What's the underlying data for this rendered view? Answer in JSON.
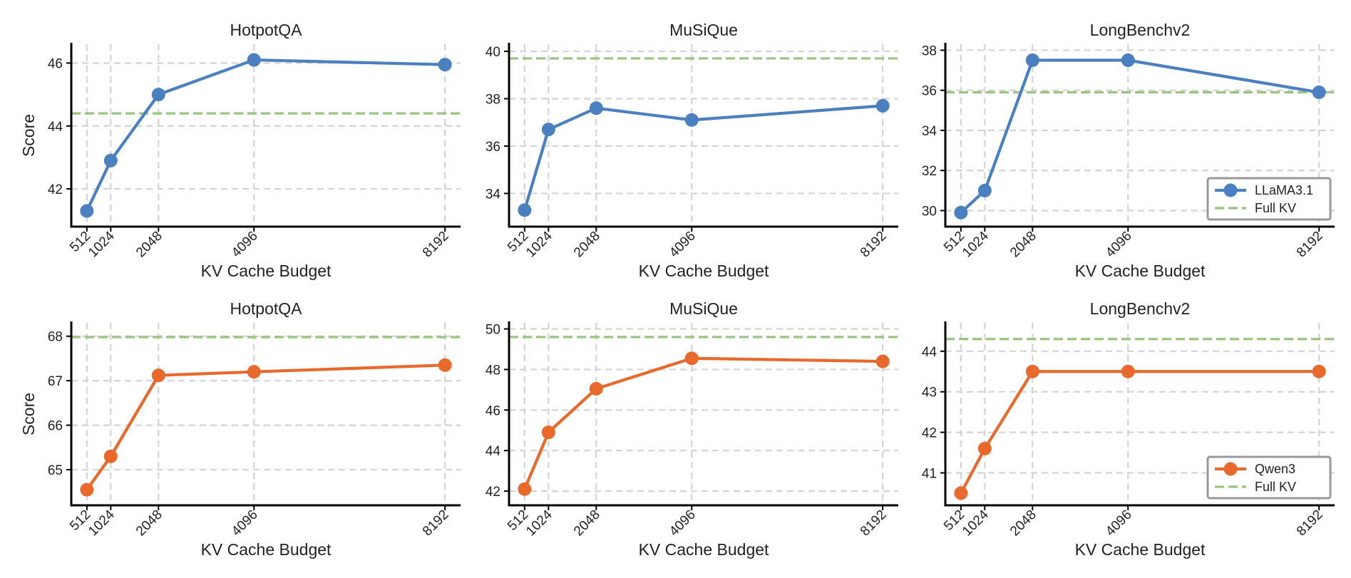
{
  "colors": {
    "llama": "#4a7fc0",
    "qwen": "#e8692b",
    "fullkv": "#98c57e",
    "grid": "#d4d4d4",
    "axis": "#000000"
  },
  "chart_data": [
    {
      "type": "line",
      "title": "HotpotQA",
      "xlabel": "KV Cache Budget",
      "ylabel": "Score",
      "x": [
        512,
        1024,
        2048,
        4096,
        8192
      ],
      "x_ticklabels": [
        "512",
        "1024",
        "2048",
        "4096",
        "8192"
      ],
      "series": [
        {
          "name": "LLaMA3.1",
          "values": [
            41.3,
            42.9,
            45.0,
            46.1,
            45.95
          ]
        }
      ],
      "full_kv": 44.4,
      "ylim": [
        40.8,
        46.6
      ],
      "yticks": [
        42,
        44,
        46
      ],
      "ytick_labels": [
        "42",
        "44",
        "46"
      ],
      "grid": true
    },
    {
      "type": "line",
      "title": "MuSiQue",
      "xlabel": "KV Cache Budget",
      "ylabel": "",
      "x": [
        512,
        1024,
        2048,
        4096,
        8192
      ],
      "x_ticklabels": [
        "512",
        "1024",
        "2048",
        "4096",
        "8192"
      ],
      "series": [
        {
          "name": "LLaMA3.1",
          "values": [
            33.3,
            36.7,
            37.6,
            37.1,
            37.7
          ]
        }
      ],
      "full_kv": 39.7,
      "ylim": [
        32.6,
        40.3
      ],
      "yticks": [
        34,
        36,
        38,
        40
      ],
      "ytick_labels": [
        "34",
        "36",
        "38",
        "40"
      ],
      "grid": true
    },
    {
      "type": "line",
      "title": "LongBenchv2",
      "xlabel": "KV Cache Budget",
      "ylabel": "",
      "x": [
        512,
        1024,
        2048,
        4096,
        8192
      ],
      "x_ticklabels": [
        "512",
        "1024",
        "2048",
        "4096",
        "8192"
      ],
      "series": [
        {
          "name": "LLaMA3.1",
          "values": [
            29.9,
            31.0,
            37.5,
            37.5,
            35.9
          ]
        }
      ],
      "full_kv": 35.9,
      "ylim": [
        29.2,
        38.3
      ],
      "yticks": [
        30,
        32,
        34,
        36,
        38
      ],
      "ytick_labels": [
        "30",
        "32",
        "34",
        "36",
        "38"
      ],
      "grid": true,
      "legend": {
        "placement": "lower-right",
        "entries": [
          "LLaMA3.1",
          "Full KV"
        ]
      }
    },
    {
      "type": "line",
      "title": "HotpotQA",
      "xlabel": "KV Cache Budget",
      "ylabel": "Score",
      "x": [
        512,
        1024,
        2048,
        4096,
        8192
      ],
      "x_ticklabels": [
        "512",
        "1024",
        "2048",
        "4096",
        "8192"
      ],
      "series": [
        {
          "name": "Qwen3",
          "values": [
            64.55,
            65.3,
            67.12,
            67.2,
            67.35
          ]
        }
      ],
      "full_kv": 67.98,
      "ylim": [
        64.2,
        68.3
      ],
      "yticks": [
        65,
        66,
        67,
        68
      ],
      "ytick_labels": [
        "65",
        "66",
        "67",
        "68"
      ],
      "grid": true
    },
    {
      "type": "line",
      "title": "MuSiQue",
      "xlabel": "KV Cache Budget",
      "ylabel": "",
      "x": [
        512,
        1024,
        2048,
        4096,
        8192
      ],
      "x_ticklabels": [
        "512",
        "1024",
        "2048",
        "4096",
        "8192"
      ],
      "series": [
        {
          "name": "Qwen3",
          "values": [
            42.1,
            44.9,
            47.05,
            48.55,
            48.4
          ]
        }
      ],
      "full_kv": 49.6,
      "ylim": [
        41.3,
        50.3
      ],
      "yticks": [
        42,
        44,
        46,
        48,
        50
      ],
      "ytick_labels": [
        "42",
        "44",
        "46",
        "48",
        "50"
      ],
      "grid": true
    },
    {
      "type": "line",
      "title": "LongBenchv2",
      "xlabel": "KV Cache Budget",
      "ylabel": "",
      "x": [
        512,
        1024,
        2048,
        4096,
        8192
      ],
      "x_ticklabels": [
        "512",
        "1024",
        "2048",
        "4096",
        "8192"
      ],
      "series": [
        {
          "name": "Qwen3",
          "values": [
            40.5,
            41.6,
            43.5,
            43.5,
            43.5
          ]
        }
      ],
      "full_kv": 44.3,
      "ylim": [
        40.2,
        44.7
      ],
      "yticks": [
        41,
        42,
        43,
        44
      ],
      "ytick_labels": [
        "41",
        "42",
        "43",
        "44"
      ],
      "grid": true,
      "legend": {
        "placement": "lower-right",
        "entries": [
          "Qwen3",
          "Full KV"
        ]
      }
    }
  ]
}
